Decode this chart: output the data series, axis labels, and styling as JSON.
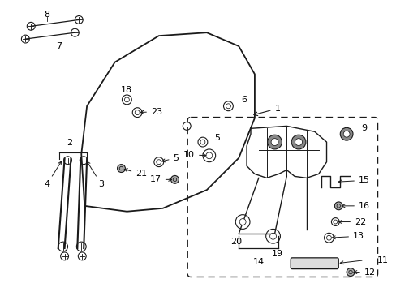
{
  "background_color": "#ffffff",
  "line_color": "#1a1a1a",
  "text_color": "#000000",
  "fig_width": 4.89,
  "fig_height": 3.6,
  "dpi": 100
}
